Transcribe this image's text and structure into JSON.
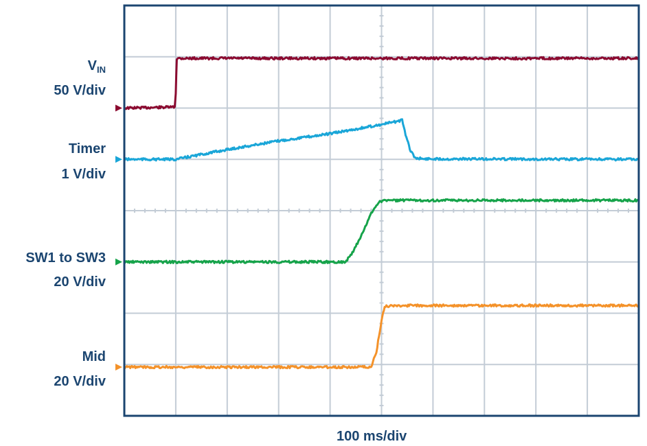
{
  "chart_data": {
    "type": "line",
    "title": "",
    "xlabel": "100 ms/div",
    "grid": true,
    "grid_divisions": {
      "x": 10,
      "y": 8
    },
    "xlim": [
      0,
      10
    ],
    "ylim": [
      0,
      8
    ],
    "series": [
      {
        "name": "VIN",
        "label_main": "V",
        "label_sub": "IN",
        "scale": "50 V/div",
        "color": "#8b0a30",
        "marker_level": 6.0,
        "points": [
          [
            0,
            6.0
          ],
          [
            0.98,
            6.02
          ],
          [
            1.0,
            6.3
          ],
          [
            1.02,
            6.96
          ],
          [
            1.06,
            6.97
          ],
          [
            10,
            6.97
          ]
        ]
      },
      {
        "name": "Timer",
        "scale": "1 V/div",
        "color": "#1aa6d8",
        "marker_level": 5.0,
        "points": [
          [
            0,
            5.0
          ],
          [
            1.0,
            5.0
          ],
          [
            2.0,
            5.19
          ],
          [
            3.0,
            5.36
          ],
          [
            4.0,
            5.5
          ],
          [
            5.0,
            5.68
          ],
          [
            5.4,
            5.76
          ],
          [
            5.45,
            5.55
          ],
          [
            5.55,
            5.2
          ],
          [
            5.65,
            5.03
          ],
          [
            5.8,
            5.01
          ],
          [
            10,
            5.0
          ]
        ]
      },
      {
        "name": "SW1 to SW3",
        "scale": "20 V/div",
        "color": "#16a34a",
        "marker_level": 3.0,
        "points": [
          [
            0,
            3.0
          ],
          [
            4.3,
            3.0
          ],
          [
            4.45,
            3.2
          ],
          [
            4.65,
            3.6
          ],
          [
            4.8,
            3.95
          ],
          [
            4.95,
            4.18
          ],
          [
            5.1,
            4.2
          ],
          [
            10,
            4.2
          ]
        ]
      },
      {
        "name": "Mid",
        "scale": "20 V/div",
        "color": "#f4922a",
        "marker_level": 0.95,
        "points": [
          [
            0,
            0.95
          ],
          [
            4.8,
            0.95
          ],
          [
            4.9,
            1.25
          ],
          [
            5.0,
            1.85
          ],
          [
            5.06,
            2.13
          ],
          [
            5.2,
            2.15
          ],
          [
            10,
            2.15
          ]
        ]
      }
    ]
  }
}
